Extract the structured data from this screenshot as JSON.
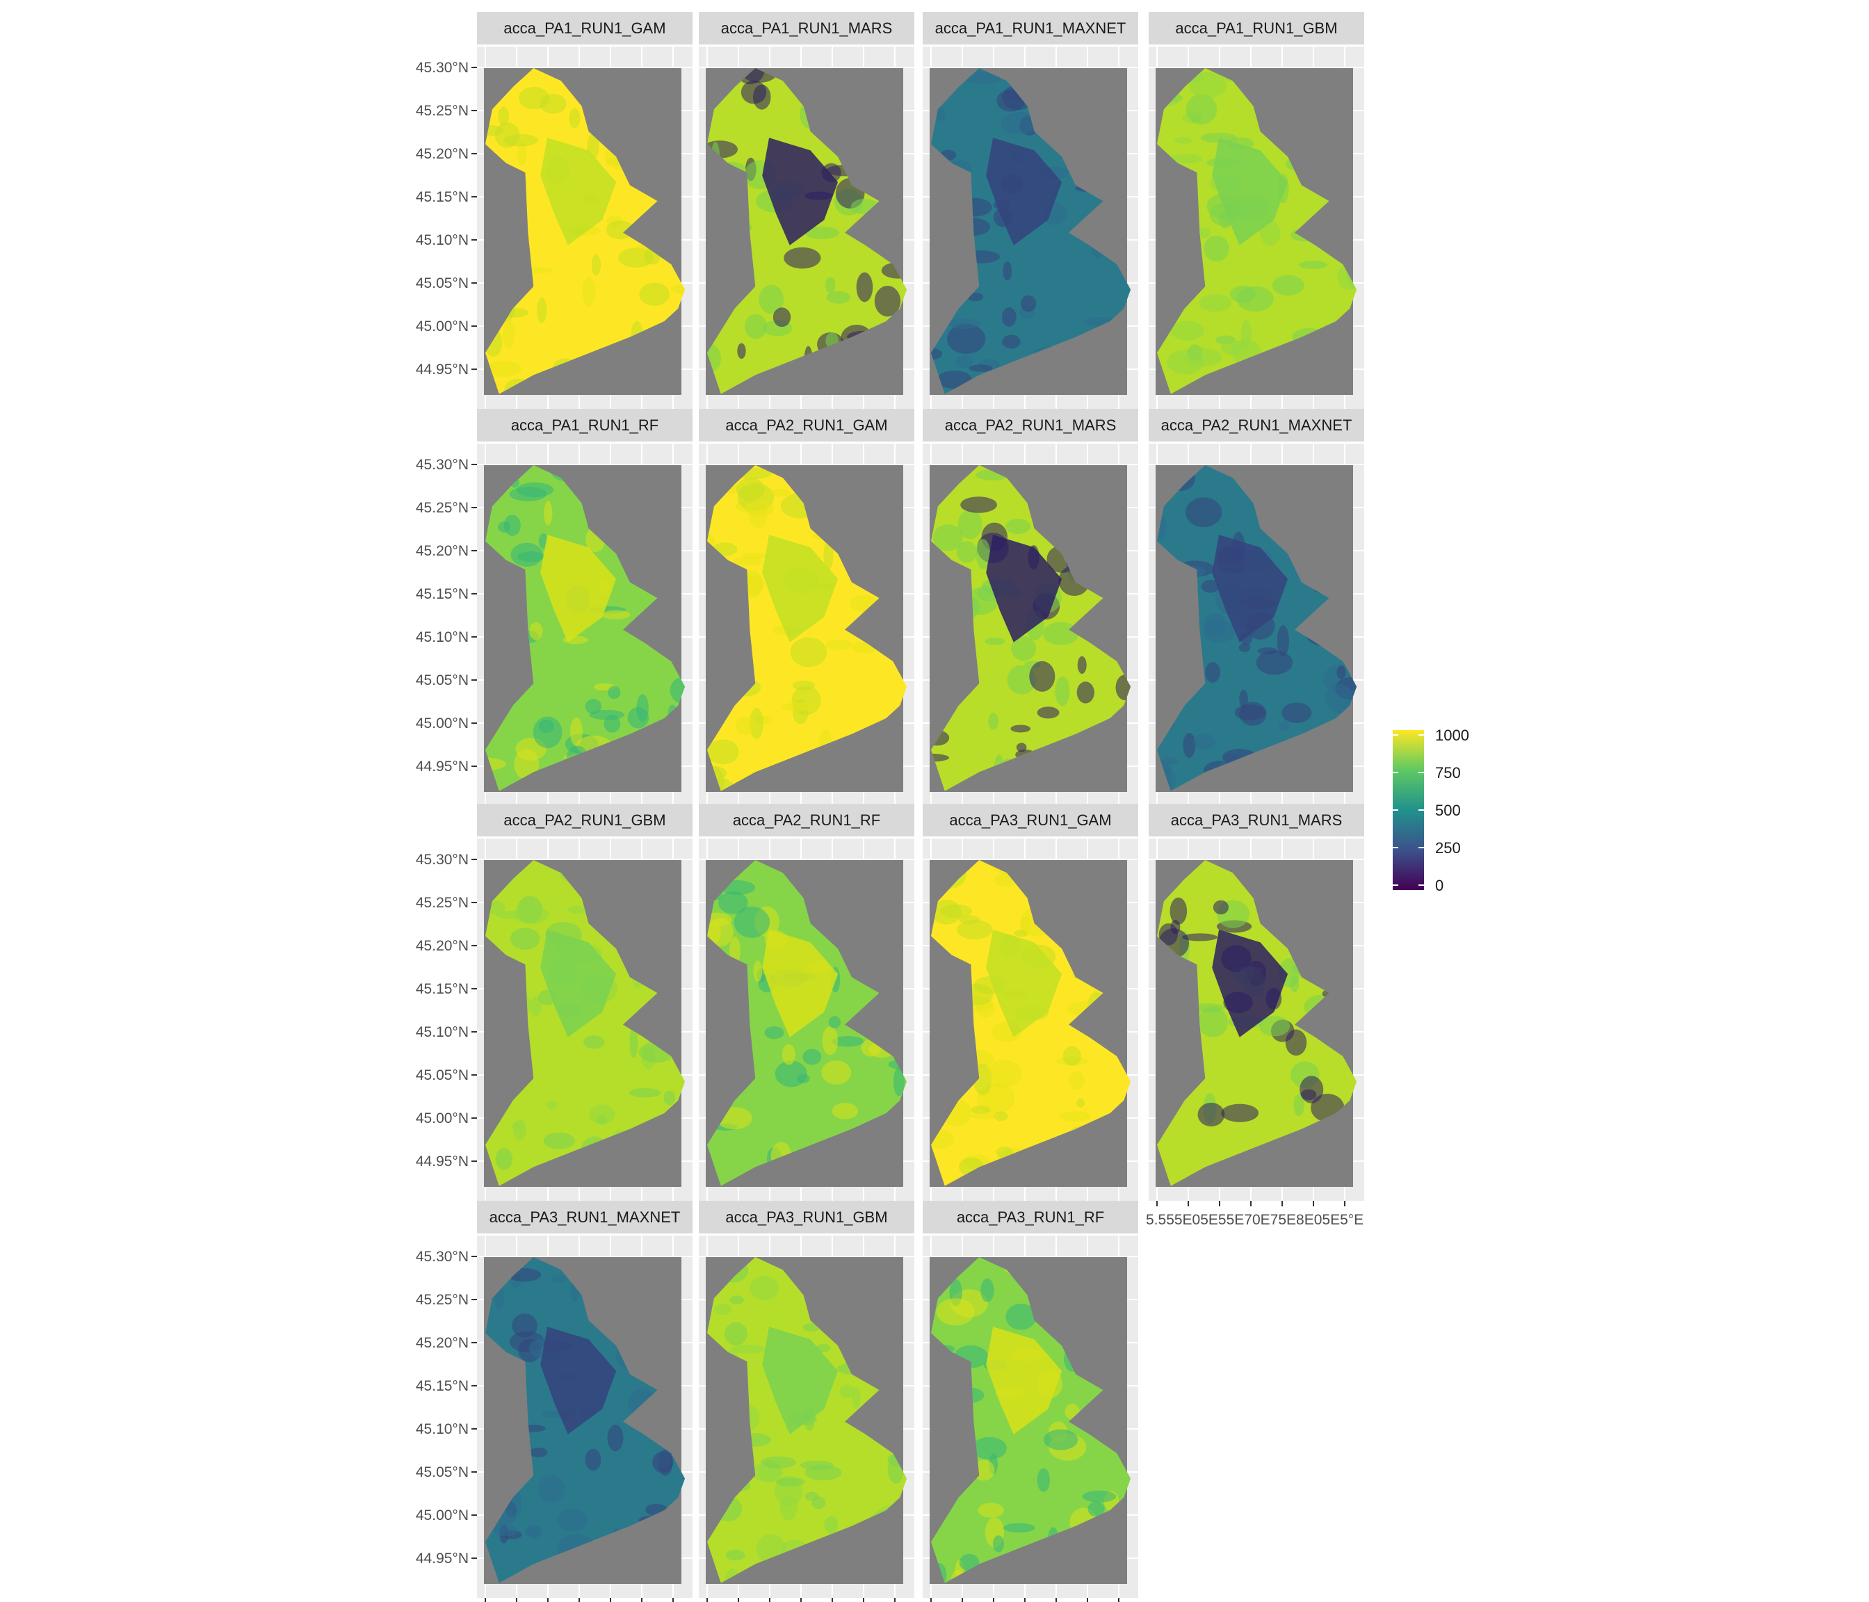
{
  "figure": {
    "type": "faceted-raster-map",
    "panel_background": "#ebebeb",
    "raster_na_color": "#7f7f7f",
    "grid_color": "#ffffff",
    "strip_background": "#d9d9d9",
    "panels": [
      {
        "title": "acca_PA1_RUN1_GAM",
        "palette": "gam"
      },
      {
        "title": "acca_PA1_RUN1_MARS",
        "palette": "mars"
      },
      {
        "title": "acca_PA1_RUN1_MAXNET",
        "palette": "maxnet"
      },
      {
        "title": "acca_PA1_RUN1_GBM",
        "palette": "gbm"
      },
      {
        "title": "acca_PA1_RUN1_RF",
        "palette": "rf"
      },
      {
        "title": "acca_PA2_RUN1_GAM",
        "palette": "gam"
      },
      {
        "title": "acca_PA2_RUN1_MARS",
        "palette": "mars"
      },
      {
        "title": "acca_PA2_RUN1_MAXNET",
        "palette": "maxnet"
      },
      {
        "title": "acca_PA2_RUN1_GBM",
        "palette": "gbm"
      },
      {
        "title": "acca_PA2_RUN1_RF",
        "palette": "rf"
      },
      {
        "title": "acca_PA3_RUN1_GAM",
        "palette": "gam"
      },
      {
        "title": "acca_PA3_RUN1_MARS",
        "palette": "mars"
      },
      {
        "title": "acca_PA3_RUN1_MAXNET",
        "palette": "maxnet"
      },
      {
        "title": "acca_PA3_RUN1_GBM",
        "palette": "gbm"
      },
      {
        "title": "acca_PA3_RUN1_RF",
        "palette": "rf"
      }
    ],
    "y_axis_ticks": [
      "45.30°N",
      "45.25°N",
      "45.20°N",
      "45.15°N",
      "45.10°N",
      "45.05°N",
      "45.00°N",
      "44.95°N"
    ],
    "x_axis_tick_label": "5.555E05E55E70E75E8E05E5°E",
    "legend": {
      "title": "",
      "ticks": [
        "1000",
        "750",
        "500",
        "250",
        "0"
      ],
      "range": [
        0,
        1000
      ],
      "colors": [
        "#fde725",
        "#5ec962",
        "#21918c",
        "#3b528b",
        "#440154"
      ],
      "placement": "right"
    },
    "palettes": {
      "gam": {
        "base": "#fde725",
        "accent": "#e7e419",
        "dark": "#c2df23"
      },
      "mars": {
        "base": "#b8de29",
        "accent": "#7ad151",
        "dark": "#2d1e63"
      },
      "maxnet": {
        "base": "#2a7a8c",
        "accent": "#2e6c8e",
        "dark": "#35437c"
      },
      "gbm": {
        "base": "#b5de2b",
        "accent": "#94d840",
        "dark": "#7ad151"
      },
      "rf": {
        "base": "#86d549",
        "accent": "#35b779",
        "dark": "#d8e219"
      }
    }
  }
}
